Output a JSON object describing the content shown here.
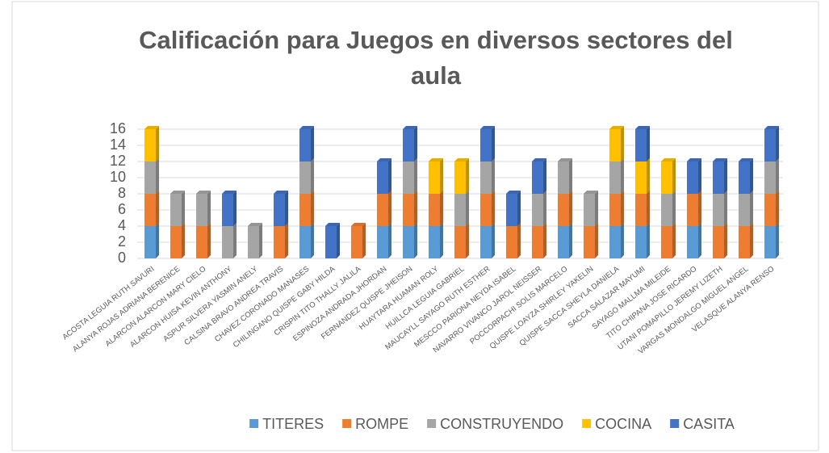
{
  "chart_data": {
    "type": "stacked_bar",
    "title": "Calificación para Juegos en diversos sectores del aula",
    "categories": [
      "ACOSTA LEGUIA RUTH SAVURI",
      "ALANYA ROJAS ADRIANA BERENICE",
      "ALARCON ALARCON MARY CIELO",
      "ALARCON HUISA KEVIN ANTHONY",
      "ASPUR SILVERA YASMIN ANELY",
      "CALSINA BRAVO ANDREA TRAVIS",
      "CHAVEZ CORONADO MANASES",
      "CHILINGANO QUISPE GABY HILDA",
      "CRISPIN TITO THALLY JALILA",
      "ESPINOZA ANDRADA JHORDAN",
      "FERNANDEZ QUISPE JHEISON",
      "HUAYTARA HUAMAN ROLY",
      "HUILLCA LEGUIA GABRIEL",
      "MAUCAYLL SAYAGO RUTH ESTHER",
      "MESCCO PARIONA NEYDA ISABEL",
      "NAVARRO VIVANCO JAROL NEISSER",
      "POCCORPACHI SOLIS MARCELO",
      "QUISPE LOAYZA SHIRLEY YAKELIN",
      "QUISPE SACCA SHEYLA DANIELA",
      "SACCA SALAZAR MAYUMI",
      "SAYAGO MALLMA MILEIDE",
      "TITO CHIPANA JOSE RICARDO",
      "UTANI POMAPILLO JEREMY LIZETH",
      "VARGAS MONDALGO MIGUEL ANGEL",
      "VELASQUE ALANYA RENSO"
    ],
    "series": [
      {
        "name": "TITERES",
        "color": "#5b9bd5",
        "values": [
          4,
          0,
          0,
          0,
          0,
          0,
          4,
          0,
          0,
          4,
          4,
          4,
          0,
          4,
          0,
          0,
          4,
          0,
          4,
          4,
          0,
          4,
          0,
          0,
          4
        ]
      },
      {
        "name": "ROMPE",
        "color": "#ed7d31",
        "values": [
          4,
          4,
          4,
          0,
          0,
          4,
          4,
          0,
          4,
          4,
          4,
          4,
          4,
          4,
          4,
          4,
          4,
          4,
          4,
          4,
          4,
          4,
          4,
          4,
          4
        ]
      },
      {
        "name": "CONSTRUYENDO",
        "color": "#a5a5a5",
        "values": [
          4,
          4,
          4,
          4,
          4,
          0,
          4,
          0,
          0,
          0,
          4,
          0,
          4,
          4,
          0,
          4,
          4,
          4,
          4,
          0,
          4,
          0,
          4,
          4,
          4
        ]
      },
      {
        "name": "COCINA",
        "color": "#ffc000",
        "values": [
          4,
          0,
          0,
          0,
          0,
          0,
          0,
          0,
          0,
          0,
          0,
          4,
          4,
          0,
          0,
          0,
          0,
          0,
          4,
          4,
          4,
          0,
          0,
          0,
          0
        ]
      },
      {
        "name": "CASITA",
        "color": "#4472c4",
        "values": [
          0,
          0,
          0,
          4,
          0,
          4,
          4,
          4,
          0,
          4,
          4,
          0,
          0,
          4,
          4,
          4,
          0,
          0,
          0,
          4,
          0,
          4,
          4,
          4,
          4
        ]
      }
    ],
    "ylim": [
      0,
      16
    ],
    "yticks": [
      0,
      2,
      4,
      6,
      8,
      10,
      12,
      14,
      16
    ],
    "grid": true,
    "legend": "bottom"
  }
}
